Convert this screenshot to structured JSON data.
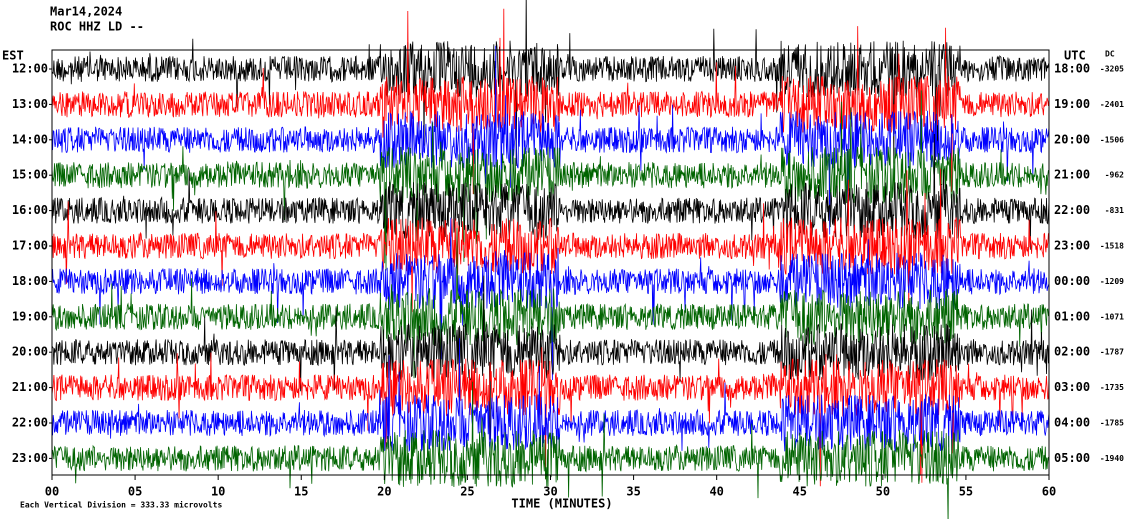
{
  "chart_data": {
    "type": "helicorder",
    "title": "Mar14,2024",
    "subtitle": "ROC HHZ LD --",
    "left_axis_label": "EST",
    "right_axis_label": "UTC",
    "dc_label": "DC",
    "rows": [
      {
        "est": "12:00",
        "utc": "18:00",
        "dc": -3205,
        "color": "#000000"
      },
      {
        "est": "13:00",
        "utc": "19:00",
        "dc": -2401,
        "color": "#ff0000"
      },
      {
        "est": "14:00",
        "utc": "20:00",
        "dc": -1506,
        "color": "#0000ff"
      },
      {
        "est": "15:00",
        "utc": "21:00",
        "dc": -962,
        "color": "#006400"
      },
      {
        "est": "16:00",
        "utc": "22:00",
        "dc": -831,
        "color": "#000000"
      },
      {
        "est": "17:00",
        "utc": "23:00",
        "dc": -1518,
        "color": "#ff0000"
      },
      {
        "est": "18:00",
        "utc": "00:00",
        "dc": -1209,
        "color": "#0000ff"
      },
      {
        "est": "19:00",
        "utc": "01:00",
        "dc": -1071,
        "color": "#006400"
      },
      {
        "est": "20:00",
        "utc": "02:00",
        "dc": -1787,
        "color": "#000000"
      },
      {
        "est": "21:00",
        "utc": "03:00",
        "dc": -1735,
        "color": "#ff0000"
      },
      {
        "est": "22:00",
        "utc": "04:00",
        "dc": -1785,
        "color": "#0000ff"
      },
      {
        "est": "23:00",
        "utc": "05:00",
        "dc": -1940,
        "color": "#006400"
      }
    ],
    "xlim": [
      0,
      60
    ],
    "xticks": [
      {
        "value": 0,
        "label": "00"
      },
      {
        "value": 5,
        "label": "05"
      },
      10,
      15,
      20,
      25,
      30,
      35,
      40,
      45,
      50,
      55,
      60
    ],
    "xlabel": "TIME (MINUTES)",
    "footnote": "Each Vertical Division =  333.33 microvolts"
  }
}
